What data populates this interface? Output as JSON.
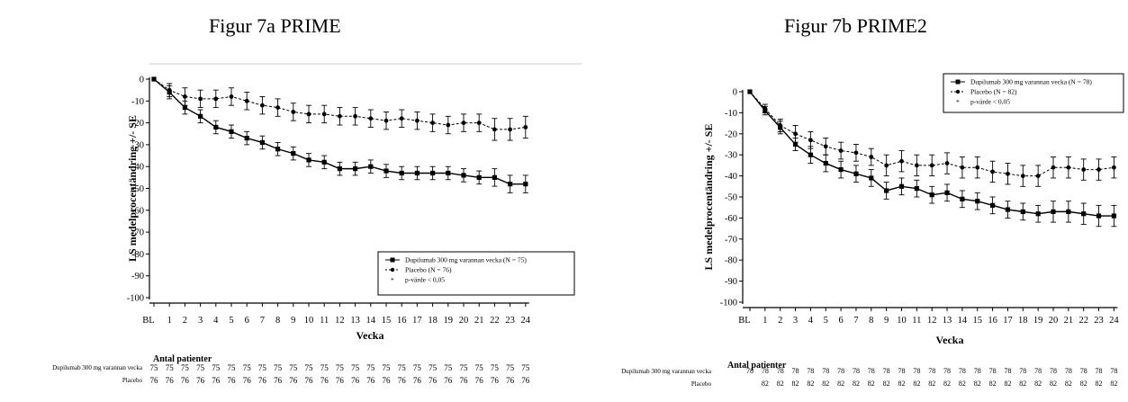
{
  "chart_data": [
    {
      "id": "a",
      "type": "line",
      "title": "Figur 7a PRIME",
      "xlabel": "Vecka",
      "ylabel": "LS medelprocentändring +/- SE",
      "x": [
        "BL",
        "1",
        "2",
        "3",
        "4",
        "5",
        "6",
        "7",
        "8",
        "9",
        "10",
        "11",
        "12",
        "13",
        "14",
        "15",
        "16",
        "17",
        "18",
        "19",
        "20",
        "21",
        "22",
        "23",
        "24"
      ],
      "ylim": [
        -100,
        0
      ],
      "yticks": [
        0,
        -10,
        -20,
        -30,
        -40,
        -50,
        -60,
        -70,
        -80,
        -90,
        -100
      ],
      "legend_position": "bottom-right",
      "series": [
        {
          "name": "Dupilumab 300 mg varannan vecka (N = 75)",
          "style": "solid-square",
          "values": [
            0,
            -6,
            -13,
            -17,
            -22,
            -24,
            -27,
            -29,
            -32,
            -34,
            -37,
            -38,
            -41,
            -41,
            -40,
            -42,
            -43,
            -43,
            -43,
            -43,
            -44,
            -45,
            -45,
            -48,
            -48
          ],
          "se": [
            0,
            3,
            3,
            3,
            3,
            3,
            3,
            3,
            3,
            3,
            3,
            3,
            3,
            3,
            3,
            3,
            3,
            3,
            3,
            3,
            3,
            3,
            4,
            4,
            4
          ]
        },
        {
          "name": "Placebo (N = 76)",
          "style": "dashed-circle",
          "values": [
            0,
            -5,
            -8,
            -9,
            -9,
            -8,
            -10,
            -12,
            -13,
            -15,
            -16,
            -16,
            -17,
            -17,
            -18,
            -19,
            -18,
            -19,
            -20,
            -21,
            -20,
            -20,
            -23,
            -23,
            -22
          ],
          "se": [
            0,
            3,
            4,
            4,
            4,
            4,
            4,
            4,
            4,
            4,
            4,
            4,
            4,
            4,
            4,
            4,
            4,
            4,
            4,
            4,
            4,
            4,
            5,
            5,
            5
          ]
        }
      ],
      "legend_note": "p-värde < 0,05",
      "antal_title": "Antal patienter",
      "counts": [
        {
          "label": "Dupilumab 300 mg varannan vecka",
          "values": [
            "75",
            "75",
            "75",
            "75",
            "75",
            "75",
            "75",
            "75",
            "75",
            "75",
            "75",
            "75",
            "75",
            "75",
            "75",
            "75",
            "75",
            "75",
            "75",
            "75",
            "75",
            "75",
            "75",
            "75",
            "75"
          ]
        },
        {
          "label": "Placebo",
          "values": [
            "76",
            "76",
            "76",
            "76",
            "76",
            "76",
            "76",
            "76",
            "76",
            "76",
            "76",
            "76",
            "76",
            "76",
            "76",
            "76",
            "76",
            "76",
            "76",
            "76",
            "76",
            "76",
            "76",
            "76",
            "76"
          ]
        }
      ]
    },
    {
      "id": "b",
      "type": "line",
      "title": "Figur 7b PRIME2",
      "xlabel": "Vecka",
      "ylabel": "LS medelprocentändring +/- SE",
      "x": [
        "BL",
        "1",
        "2",
        "3",
        "4",
        "5",
        "6",
        "7",
        "8",
        "9",
        "10",
        "11",
        "12",
        "13",
        "14",
        "15",
        "16",
        "17",
        "18",
        "19",
        "20",
        "21",
        "22",
        "23",
        "24"
      ],
      "ylim": [
        -100,
        0
      ],
      "yticks": [
        0,
        -10,
        -20,
        -30,
        -40,
        -50,
        -60,
        -70,
        -80,
        -90,
        -100
      ],
      "legend_position": "top-right",
      "series": [
        {
          "name": "Dupilumab 300 mg varannan vecka (N = 78)",
          "style": "solid-square",
          "values": [
            0,
            -9,
            -17,
            -25,
            -30,
            -34,
            -37,
            -39,
            -41,
            -47,
            -45,
            -46,
            -49,
            -48,
            -51,
            -52,
            -54,
            -56,
            -57,
            -58,
            -57,
            -57,
            -58,
            -59,
            -59
          ],
          "se": [
            0,
            2,
            3,
            3,
            4,
            4,
            4,
            4,
            4,
            4,
            4,
            4,
            4,
            4,
            4,
            4,
            4,
            4,
            4,
            4,
            5,
            5,
            5,
            5,
            5
          ]
        },
        {
          "name": "Placebo (N = 82)",
          "style": "dashed-circle",
          "values": [
            0,
            -8,
            -16,
            -20,
            -23,
            -26,
            -28,
            -29,
            -31,
            -35,
            -33,
            -35,
            -35,
            -34,
            -36,
            -36,
            -38,
            -39,
            -40,
            -40,
            -36,
            -36,
            -37,
            -37,
            -36
          ],
          "se": [
            0,
            2,
            3,
            4,
            4,
            4,
            4,
            4,
            4,
            5,
            5,
            5,
            5,
            5,
            5,
            5,
            5,
            5,
            5,
            5,
            5,
            5,
            5,
            5,
            5
          ]
        }
      ],
      "legend_note": "p-värde < 0,05",
      "antal_title": "Antal patienter",
      "counts": [
        {
          "label": "Dupilumab 300 mg varannan vecka",
          "values": [
            "78",
            "78",
            "78",
            "78",
            "78",
            "78",
            "78",
            "78",
            "78",
            "78",
            "78",
            "78",
            "78",
            "78",
            "78",
            "78",
            "78",
            "78",
            "78",
            "78",
            "78",
            "78",
            "78",
            "78",
            "78"
          ]
        },
        {
          "label": "Placebo",
          "values": [
            "",
            "82",
            "82",
            "82",
            "82",
            "82",
            "82",
            "82",
            "82",
            "82",
            "82",
            "82",
            "82",
            "82",
            "82",
            "82",
            "82",
            "82",
            "82",
            "82",
            "82",
            "82",
            "82",
            "82",
            "82"
          ]
        }
      ]
    }
  ]
}
